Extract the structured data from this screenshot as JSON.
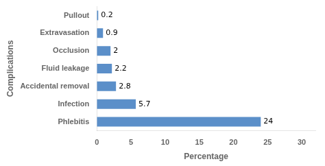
{
  "chart_data": {
    "type": "bar",
    "orientation": "horizontal",
    "categories": [
      "Phlebitis",
      "Infection",
      "Accidental removal",
      "Fluid leakage",
      "Occlusion",
      "Extravasation",
      "Pullout"
    ],
    "values": [
      24,
      5.7,
      2.8,
      2.2,
      2,
      0.9,
      0.2
    ],
    "color": "#5b8fc9",
    "xlabel": "Percentage",
    "ylabel": "Complications",
    "xlim": [
      0,
      32
    ],
    "xticks": [
      0,
      5,
      10,
      15,
      20,
      25,
      30
    ],
    "grid": false,
    "data_labels": true
  }
}
